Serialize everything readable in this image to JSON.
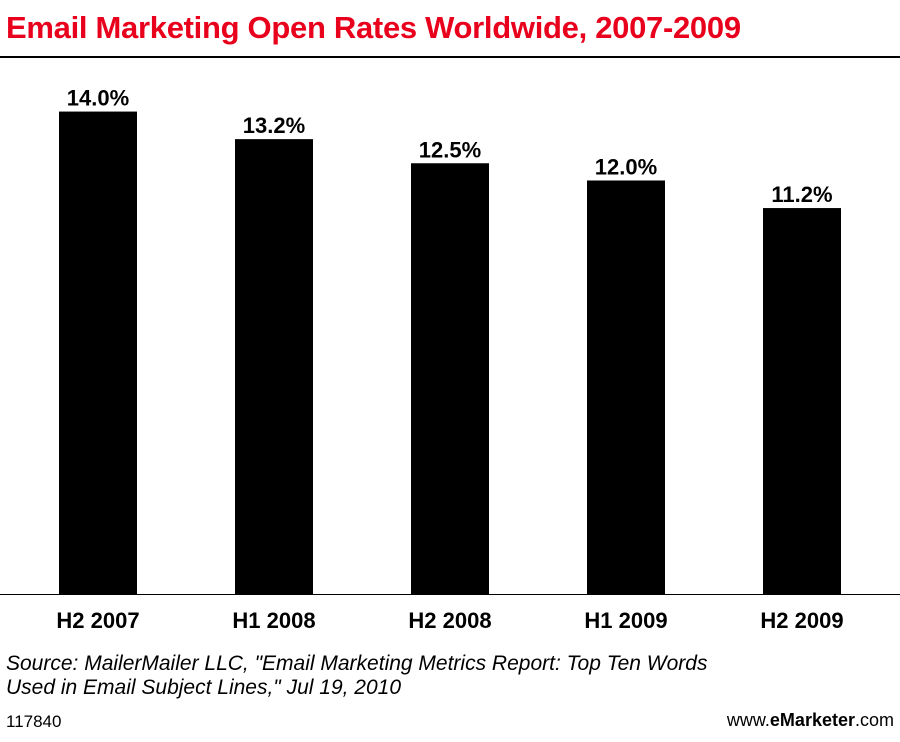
{
  "chart_data": {
    "type": "bar",
    "title": "Email Marketing Open Rates Worldwide, 2007-2009",
    "categories": [
      "H2 2007",
      "H1 2008",
      "H2 2008",
      "H1 2009",
      "H2 2009"
    ],
    "values": [
      14.0,
      13.2,
      12.5,
      12.0,
      11.2
    ],
    "value_labels": [
      "14.0%",
      "13.2%",
      "12.5%",
      "12.0%",
      "11.2%"
    ],
    "xlabel": "",
    "ylabel": "",
    "ylim": [
      0,
      14.8
    ],
    "bar_color": "#000000",
    "grid": false,
    "legend": "none"
  },
  "footer": {
    "source": "Source: MailerMailer LLC, \"Email Marketing Metrics Report: Top Ten Words\nUsed in Email Subject Lines,\" Jul 19, 2010",
    "chart_id": "117840",
    "brand_prefix": "www.",
    "brand_bold": "eMarketer",
    "brand_suffix": ".com"
  },
  "colors": {
    "title": "#e8001c",
    "text": "#000000",
    "background": "#ffffff"
  }
}
